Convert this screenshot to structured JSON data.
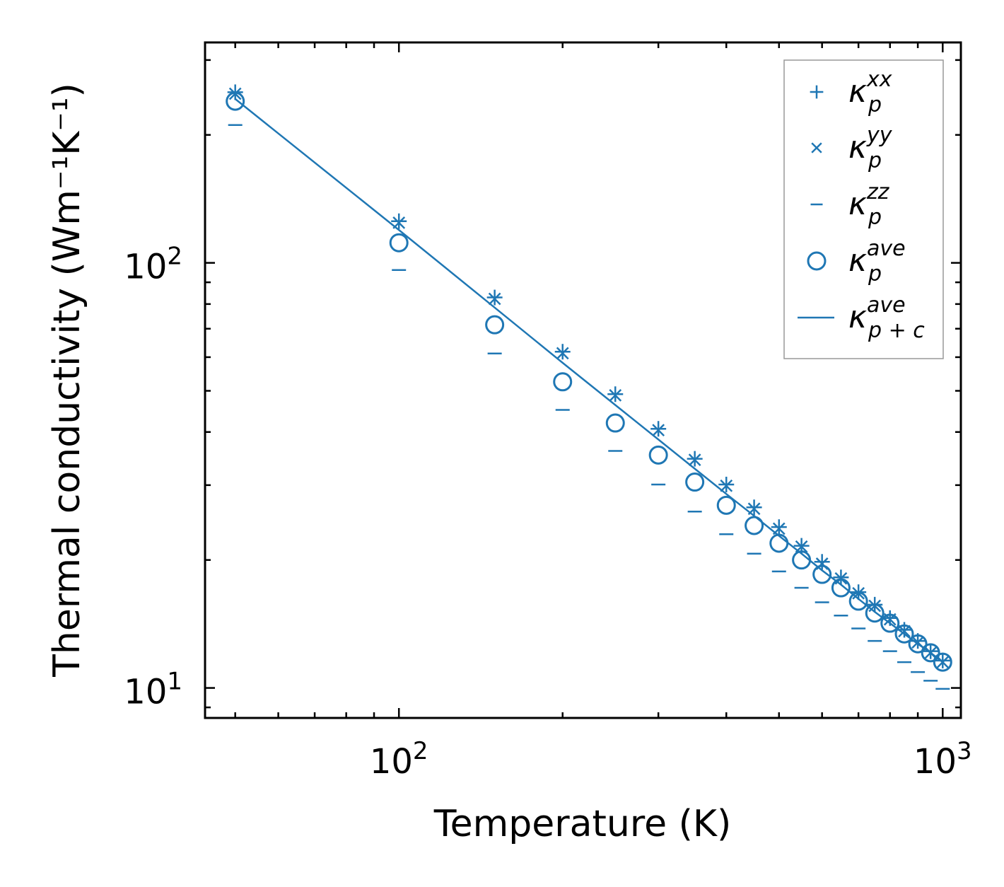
{
  "chart_data": {
    "type": "scatter",
    "xscale": "log",
    "yscale": "log",
    "xlim": [
      44,
      1080
    ],
    "ylim": [
      8.5,
      330
    ],
    "xlabel": "Temperature (K)",
    "ylabel": "Thermal conductivity (Wm⁻¹K⁻¹)",
    "x_ticks": [
      {
        "value": 100,
        "base": "10",
        "exp": "2"
      },
      {
        "value": 1000,
        "base": "10",
        "exp": "3"
      }
    ],
    "y_ticks": [
      {
        "value": 10,
        "base": "10",
        "exp": "1"
      },
      {
        "value": 100,
        "base": "10",
        "exp": "2"
      }
    ],
    "x": [
      50,
      100,
      150,
      200,
      250,
      300,
      350,
      400,
      450,
      500,
      550,
      600,
      650,
      700,
      750,
      800,
      850,
      900,
      950,
      1000
    ],
    "series": [
      {
        "name": "κ_p^xx",
        "symbol": "+",
        "values": [
          252,
          125.3,
          82.9,
          61.8,
          49.1,
          40.7,
          34.6,
          30.1,
          26.6,
          23.9,
          21.6,
          19.8,
          18.2,
          16.8,
          15.7,
          14.6,
          13.7,
          12.9,
          12.2,
          11.6
        ]
      },
      {
        "name": "κ_p^yy",
        "symbol": "x",
        "values": [
          250,
          124.3,
          82.3,
          61.3,
          48.8,
          40.4,
          34.4,
          29.9,
          26.4,
          23.7,
          21.5,
          19.6,
          18.1,
          16.7,
          15.6,
          14.5,
          13.6,
          12.8,
          12.1,
          11.5
        ]
      },
      {
        "name": "κ_p^zz",
        "symbol": "_",
        "values": [
          211,
          96.2,
          61.2,
          45.1,
          36.1,
          30.1,
          26.0,
          23.0,
          20.7,
          18.8,
          17.2,
          15.9,
          14.8,
          13.8,
          12.9,
          12.2,
          11.5,
          10.9,
          10.4,
          9.95
        ]
      },
      {
        "name": "κ_p^ave",
        "symbol": "o",
        "values": [
          240,
          111.5,
          71.5,
          52.5,
          42.0,
          35.3,
          30.5,
          26.9,
          24.1,
          21.9,
          20.0,
          18.5,
          17.2,
          16.0,
          15.0,
          14.2,
          13.4,
          12.7,
          12.1,
          11.5
        ]
      },
      {
        "name": "κ_p+c^ave",
        "symbol": "line",
        "values": [
          243,
          119.5,
          78.5,
          58.2,
          46.3,
          38.4,
          32.8,
          28.6,
          25.4,
          22.8,
          20.7,
          18.9,
          17.5,
          16.2,
          15.1,
          14.2,
          13.4,
          12.7,
          12.1,
          11.5
        ]
      }
    ],
    "legend": {
      "position": "top-right",
      "entries": [
        {
          "base": "κ",
          "sup": "xx",
          "sub": "p"
        },
        {
          "base": "κ",
          "sup": "yy",
          "sub": "p"
        },
        {
          "base": "κ",
          "sup": "zz",
          "sub": "p"
        },
        {
          "base": "κ",
          "sup": "ave",
          "sub": "p"
        },
        {
          "base": "κ",
          "sup": "ave",
          "sub": "p + c"
        }
      ]
    },
    "color": "#1f77b4"
  }
}
